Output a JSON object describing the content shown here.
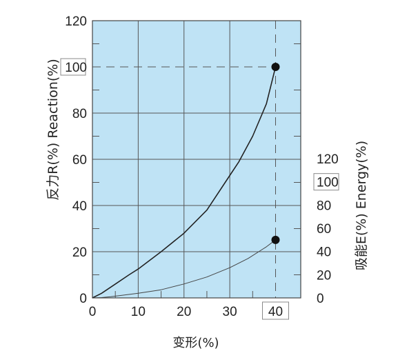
{
  "chart_data": {
    "type": "line",
    "title": "",
    "xlabel": "变形(%)",
    "ylabel_left": "反力R(%) Reaction(%)",
    "ylabel_right": "吸能E(%) Energy(%)",
    "xlim": [
      0,
      40
    ],
    "ylim_left": [
      0,
      120
    ],
    "ylim_right": [
      0,
      120
    ],
    "x_ticks": [
      "0",
      "10",
      "20",
      "30",
      "40"
    ],
    "y_left_ticks": [
      "0",
      "20",
      "40",
      "60",
      "80",
      "100",
      "120"
    ],
    "y_right_ticks": [
      "0",
      "20",
      "40",
      "60",
      "80",
      "100",
      "120"
    ],
    "grid": true,
    "background_color": "#bfe3f5",
    "series": [
      {
        "axis": "left",
        "color": "#222222",
        "x": [
          0,
          2,
          5,
          8,
          10,
          15,
          20,
          25,
          30,
          32,
          35,
          38,
          40
        ],
        "y": [
          0,
          2,
          6,
          10,
          12.5,
          20,
          28,
          38,
          53,
          59,
          70,
          84,
          100
        ]
      },
      {
        "axis": "right",
        "color": "#444444",
        "x": [
          0,
          2,
          4,
          6,
          10,
          15,
          20,
          25,
          30,
          34,
          38,
          40
        ],
        "y": [
          0,
          0.3,
          1,
          2,
          4,
          7,
          12,
          18,
          26,
          34,
          44,
          50
        ]
      }
    ],
    "markers": [
      {
        "axis": "left",
        "x": 40,
        "y": 100
      },
      {
        "axis": "right",
        "x": 40,
        "y": 50
      }
    ],
    "reference_lines": [
      {
        "type": "horizontal",
        "axis": "left",
        "y": 100,
        "style": "dashed"
      },
      {
        "type": "vertical",
        "x": 40,
        "style": "dashed"
      }
    ],
    "boxed_ticks": [
      "y_left:100",
      "y_right:100",
      "x:40"
    ]
  }
}
